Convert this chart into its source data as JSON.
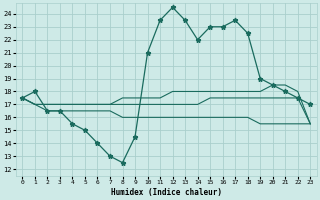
{
  "xlabel": "Humidex (Indice chaleur)",
  "bg_color": "#ceeae7",
  "grid_color": "#aacfcc",
  "line_color": "#1a6b5e",
  "x_ticks": [
    0,
    1,
    2,
    3,
    4,
    5,
    6,
    7,
    8,
    9,
    10,
    11,
    12,
    13,
    14,
    15,
    16,
    17,
    18,
    19,
    20,
    21,
    22,
    23
  ],
  "y_ticks": [
    12,
    13,
    14,
    15,
    16,
    17,
    18,
    19,
    20,
    21,
    22,
    23,
    24
  ],
  "ylim": [
    11.5,
    24.8
  ],
  "xlim": [
    -0.5,
    23.5
  ],
  "main_series": [
    17.5,
    18.0,
    16.5,
    16.5,
    15.5,
    15.0,
    14.0,
    13.0,
    12.5,
    14.5,
    21.0,
    23.5,
    24.5,
    23.5,
    22.0,
    23.0,
    23.0,
    23.5,
    22.5,
    19.0,
    18.5,
    18.0,
    17.5,
    17.0
  ],
  "line_low": [
    17.5,
    17.0,
    16.5,
    16.5,
    16.5,
    16.5,
    16.5,
    16.5,
    16.0,
    16.0,
    16.0,
    16.0,
    16.0,
    16.0,
    16.0,
    16.0,
    16.0,
    16.0,
    16.0,
    15.5,
    15.5,
    15.5,
    15.5,
    15.5
  ],
  "line_mid": [
    17.5,
    17.0,
    17.0,
    17.0,
    17.0,
    17.0,
    17.0,
    17.0,
    17.0,
    17.0,
    17.0,
    17.0,
    17.0,
    17.0,
    17.0,
    17.5,
    17.5,
    17.5,
    17.5,
    17.5,
    17.5,
    17.5,
    17.5,
    15.5
  ],
  "line_high": [
    17.5,
    17.0,
    17.0,
    17.0,
    17.0,
    17.0,
    17.0,
    17.0,
    17.5,
    17.5,
    17.5,
    17.5,
    18.0,
    18.0,
    18.0,
    18.0,
    18.0,
    18.0,
    18.0,
    18.0,
    18.5,
    18.5,
    18.0,
    15.5
  ]
}
